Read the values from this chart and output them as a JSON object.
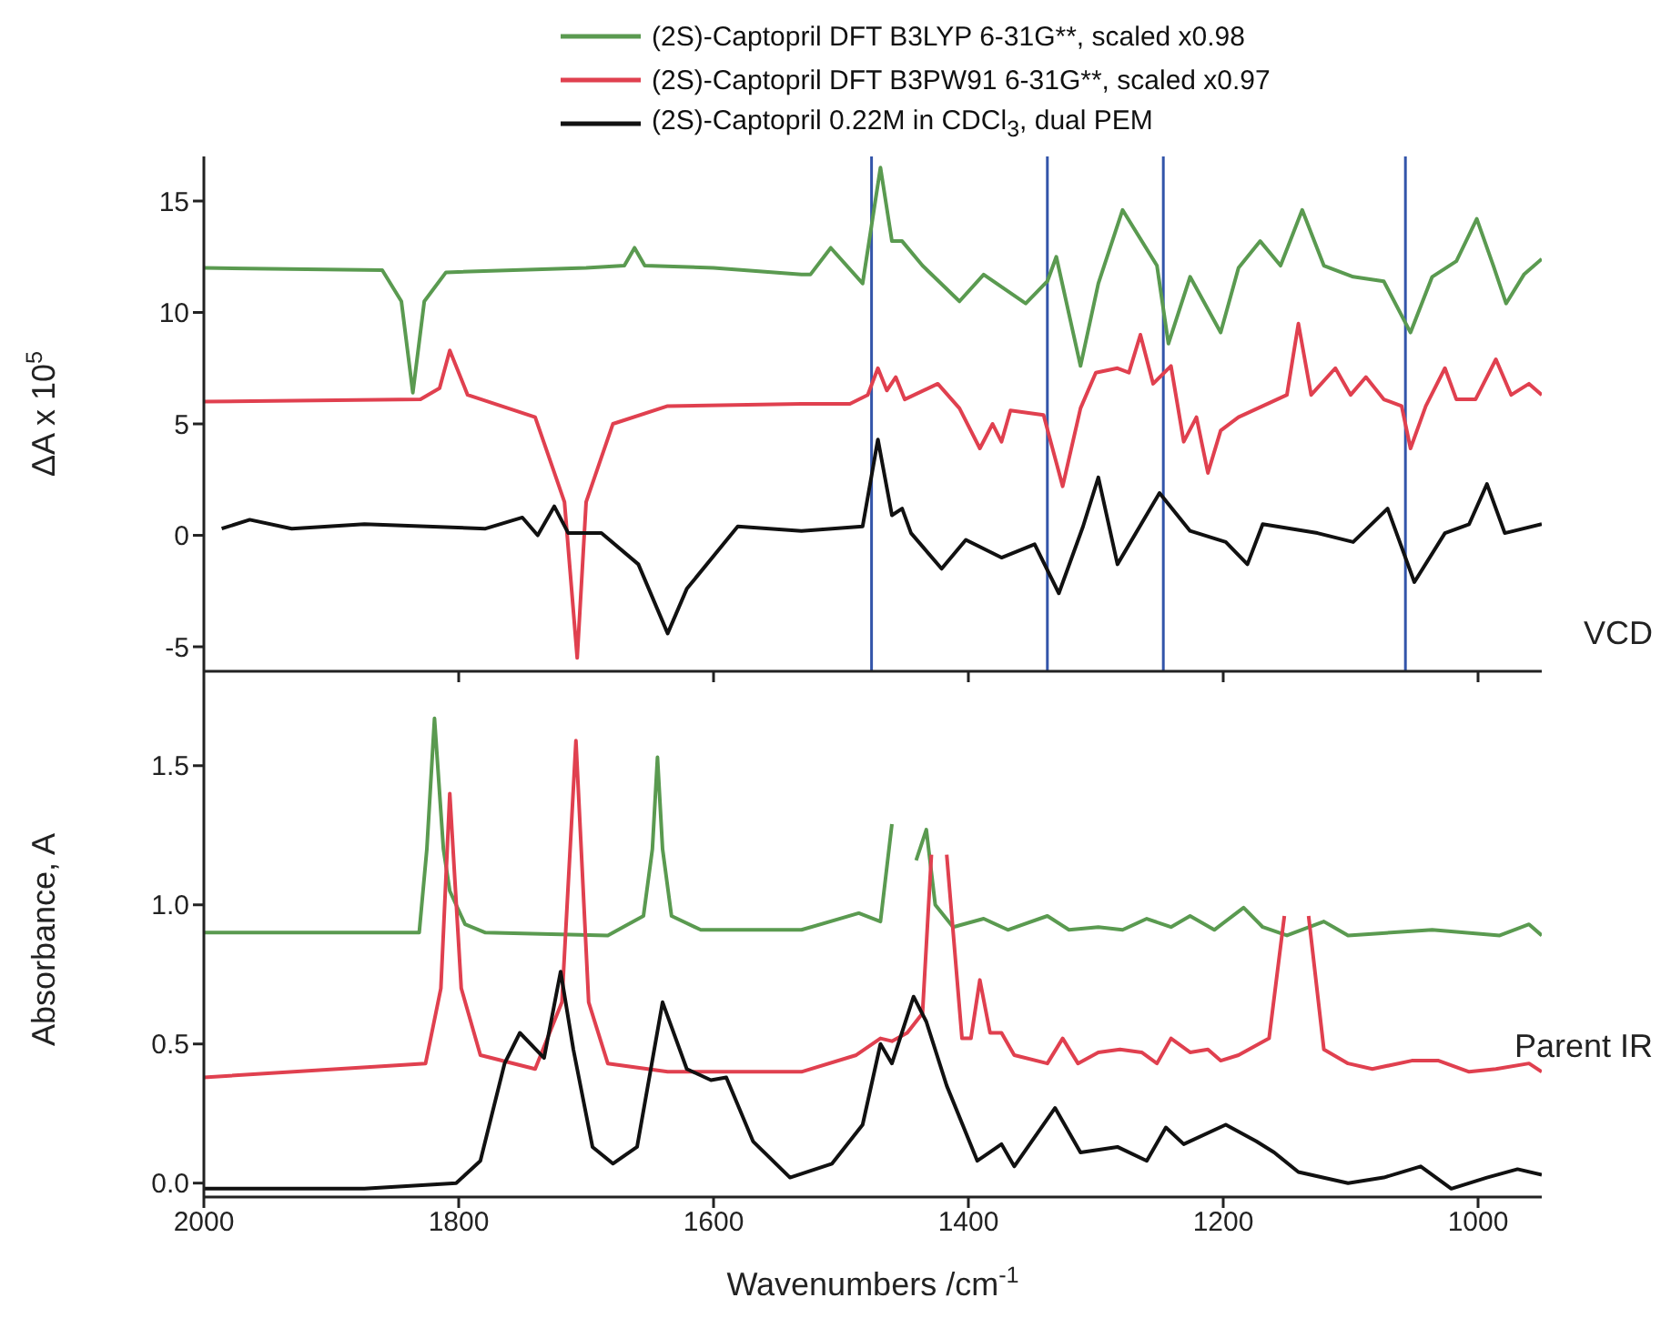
{
  "chart_data": [
    {
      "type": "line",
      "ylabel": "ΔA x 10$^{5}$",
      "legend": "top right",
      "tick_labels": "y",
      "marker": "none",
      "line_style": "solid",
      "grid": false,
      "xlim": [
        2000,
        950
      ],
      "xticks": [
        {
          "value": 2000,
          "label": null
        },
        {
          "value": 1800,
          "label": null
        },
        {
          "value": 1600,
          "label": null
        },
        {
          "value": 1400,
          "label": null
        },
        {
          "value": 1200,
          "label": null
        },
        {
          "value": 1000,
          "label": null
        }
      ],
      "ylim": [
        -6.1,
        17
      ],
      "yticks": [
        -5,
        0,
        5,
        10,
        15
      ],
      "annotations": [
        "VCD"
      ],
      "ref_lines": [
        {
          "axis": "x",
          "value": 1476,
          "color": "#3355aa"
        },
        {
          "axis": "x",
          "value": 1338,
          "color": "#3355aa"
        },
        {
          "axis": "x",
          "value": 1247,
          "color": "#3355aa"
        },
        {
          "axis": "x",
          "value": 1057,
          "color": "#3355aa"
        }
      ],
      "series": [
        {
          "name": "(2S)-Captopril DFT B3LYP 6-31G**, scaled x0.98",
          "color": "#5a9a50",
          "x": [
            2000,
            1860,
            1845,
            1836,
            1827,
            1810,
            1700,
            1670,
            1662,
            1654,
            1600,
            1531,
            1524,
            1508,
            1483,
            1469,
            1460,
            1452,
            1436,
            1407,
            1388,
            1355,
            1338,
            1331,
            1312,
            1298,
            1279,
            1252,
            1243,
            1226,
            1202,
            1188,
            1171,
            1155,
            1138,
            1121,
            1098,
            1074,
            1053,
            1036,
            1017,
            1001,
            988,
            978,
            964,
            950
          ],
          "values": [
            12.0,
            11.9,
            10.5,
            6.4,
            10.5,
            11.8,
            12.0,
            12.1,
            12.9,
            12.1,
            12.0,
            11.7,
            11.7,
            12.9,
            11.3,
            16.5,
            13.2,
            13.2,
            12.1,
            10.5,
            11.7,
            10.4,
            11.4,
            12.5,
            7.6,
            11.3,
            14.6,
            12.1,
            8.6,
            11.6,
            9.1,
            12.0,
            13.2,
            12.1,
            14.6,
            12.1,
            11.6,
            11.4,
            9.1,
            11.6,
            12.3,
            14.2,
            12.1,
            10.4,
            11.7,
            12.4
          ]
        },
        {
          "name": "(2S)-Captopril DFT B3PW91 6-31G**, scaled x0.97",
          "color": "#e0404f",
          "x": [
            2000,
            1830,
            1815,
            1807,
            1793,
            1740,
            1717,
            1707,
            1700,
            1679,
            1636,
            1531,
            1493,
            1479,
            1471,
            1464,
            1457,
            1450,
            1424,
            1407,
            1391,
            1381,
            1374,
            1367,
            1341,
            1326,
            1312,
            1300,
            1283,
            1274,
            1265,
            1255,
            1241,
            1231,
            1221,
            1212,
            1202,
            1188,
            1150,
            1141,
            1131,
            1112,
            1100,
            1088,
            1074,
            1060,
            1053,
            1041,
            1026,
            1017,
            1002,
            986,
            974,
            960,
            950
          ],
          "values": [
            6.0,
            6.1,
            6.6,
            8.3,
            6.3,
            5.3,
            1.5,
            -5.5,
            1.5,
            5.0,
            5.8,
            5.9,
            5.9,
            6.3,
            7.5,
            6.5,
            7.1,
            6.1,
            6.8,
            5.7,
            3.9,
            5.0,
            4.2,
            5.6,
            5.4,
            2.2,
            5.7,
            7.3,
            7.5,
            7.3,
            9.0,
            6.8,
            7.6,
            4.2,
            5.3,
            2.8,
            4.7,
            5.3,
            6.3,
            9.5,
            6.3,
            7.5,
            6.3,
            7.1,
            6.1,
            5.8,
            3.9,
            5.8,
            7.5,
            6.1,
            6.1,
            7.9,
            6.3,
            6.8,
            6.3
          ]
        },
        {
          "name": "(2S)-Captopril 0.22M in CDCl$_{3}$, dual PEM",
          "color": "#111111",
          "x": [
            1986,
            1964,
            1931,
            1874,
            1779,
            1750,
            1738,
            1725,
            1714,
            1688,
            1659,
            1636,
            1621,
            1581,
            1531,
            1483,
            1471,
            1460,
            1452,
            1445,
            1421,
            1402,
            1374,
            1348,
            1329,
            1310,
            1298,
            1283,
            1250,
            1226,
            1198,
            1181,
            1169,
            1126,
            1098,
            1071,
            1050,
            1026,
            1007,
            993,
            979,
            950
          ],
          "values": [
            0.3,
            0.7,
            0.3,
            0.5,
            0.3,
            0.8,
            0.0,
            1.3,
            0.1,
            0.1,
            -1.3,
            -4.4,
            -2.4,
            0.4,
            0.2,
            0.4,
            4.3,
            0.9,
            1.2,
            0.1,
            -1.5,
            -0.2,
            -1.0,
            -0.4,
            -2.6,
            0.4,
            2.6,
            -1.3,
            1.9,
            0.2,
            -0.3,
            -1.3,
            0.5,
            0.1,
            -0.3,
            1.2,
            -2.1,
            0.1,
            0.5,
            2.3,
            0.1,
            0.5
          ]
        }
      ]
    },
    {
      "type": "line",
      "xlabel": "Wavenumbers /cm$^{-1}$",
      "ylabel": "Absorbance, A",
      "marker": "none",
      "line_style": "solid",
      "grid": false,
      "xlim": [
        2000,
        950
      ],
      "xticks": [
        2000,
        1800,
        1600,
        1400,
        1200,
        1000
      ],
      "ylim": [
        -0.05,
        1.8
      ],
      "yticks": [
        {
          "value": 0,
          "label": "0.0"
        },
        {
          "value": 0.5,
          "label": "0.5"
        },
        {
          "value": 1,
          "label": "1.0"
        },
        {
          "value": 1.5,
          "label": "1.5"
        }
      ],
      "annotations": [
        "Parent IR"
      ],
      "series": [
        {
          "color": "#5a9a50",
          "x": [
            2000,
            1831,
            1825,
            1819,
            1812,
            1807,
            1795,
            1779,
            1683,
            1655,
            1648,
            1644,
            1640,
            1633,
            1610,
            1531,
            1486,
            1469,
            1460,
            1452,
            1441,
            1433,
            1426,
            1412,
            1388,
            1369,
            1338,
            1321,
            1298,
            1279,
            1260,
            1241,
            1226,
            1207,
            1184,
            1169,
            1150,
            1121,
            1102,
            1036,
            983,
            960,
            950
          ],
          "values": [
            0.9,
            0.9,
            1.2,
            1.67,
            1.2,
            1.05,
            0.93,
            0.9,
            0.89,
            0.96,
            1.2,
            1.53,
            1.2,
            0.96,
            0.91,
            0.91,
            0.97,
            0.94,
            1.29,
            null,
            1.16,
            1.27,
            1.0,
            0.92,
            0.95,
            0.91,
            0.96,
            0.91,
            0.92,
            0.91,
            0.95,
            0.92,
            0.96,
            0.91,
            0.99,
            0.92,
            0.89,
            0.94,
            0.89,
            0.91,
            0.89,
            0.93,
            0.89
          ]
        },
        {
          "color": "#e0404f",
          "x": [
            2000,
            1826,
            1814,
            1807,
            1798,
            1783,
            1740,
            1719,
            1708,
            1698,
            1683,
            1636,
            1531,
            1488,
            1469,
            1460,
            1448,
            1436,
            1429,
            1422,
            1417,
            1405,
            1398,
            1391,
            1383,
            1374,
            1364,
            1338,
            1326,
            1314,
            1298,
            1281,
            1264,
            1252,
            1241,
            1226,
            1212,
            1202,
            1188,
            1164,
            1152,
            1143,
            1133,
            1121,
            1102,
            1083,
            1052,
            1031,
            1007,
            986,
            960,
            950
          ],
          "values": [
            0.38,
            0.43,
            0.7,
            1.4,
            0.7,
            0.46,
            0.41,
            0.65,
            1.59,
            0.65,
            0.43,
            0.4,
            0.4,
            0.46,
            0.52,
            0.51,
            0.54,
            0.61,
            1.18,
            null,
            1.18,
            0.52,
            0.52,
            0.73,
            0.54,
            0.54,
            0.46,
            0.43,
            0.52,
            0.43,
            0.47,
            0.48,
            0.47,
            0.43,
            0.52,
            0.47,
            0.48,
            0.44,
            0.46,
            0.52,
            0.96,
            null,
            0.96,
            0.48,
            0.43,
            0.41,
            0.44,
            0.44,
            0.4,
            0.41,
            0.43,
            0.4
          ]
        },
        {
          "color": "#111111",
          "x": [
            2000,
            1874,
            1802,
            1783,
            1764,
            1752,
            1733,
            1720,
            1710,
            1695,
            1679,
            1660,
            1640,
            1621,
            1602,
            1590,
            1569,
            1540,
            1507,
            1483,
            1469,
            1460,
            1443,
            1433,
            1417,
            1393,
            1374,
            1364,
            1332,
            1312,
            1283,
            1260,
            1245,
            1231,
            1198,
            1174,
            1160,
            1141,
            1102,
            1074,
            1045,
            1021,
            993,
            969,
            950
          ],
          "values": [
            -0.02,
            -0.02,
            0.0,
            0.08,
            0.43,
            0.54,
            0.45,
            0.76,
            0.48,
            0.13,
            0.07,
            0.13,
            0.65,
            0.41,
            0.37,
            0.38,
            0.15,
            0.02,
            0.07,
            0.21,
            0.5,
            0.43,
            0.67,
            0.58,
            0.35,
            0.08,
            0.14,
            0.06,
            0.27,
            0.11,
            0.13,
            0.08,
            0.2,
            0.14,
            0.21,
            0.15,
            0.11,
            0.04,
            0.0,
            0.02,
            0.06,
            -0.02,
            0.02,
            0.05,
            0.03
          ]
        }
      ]
    }
  ]
}
